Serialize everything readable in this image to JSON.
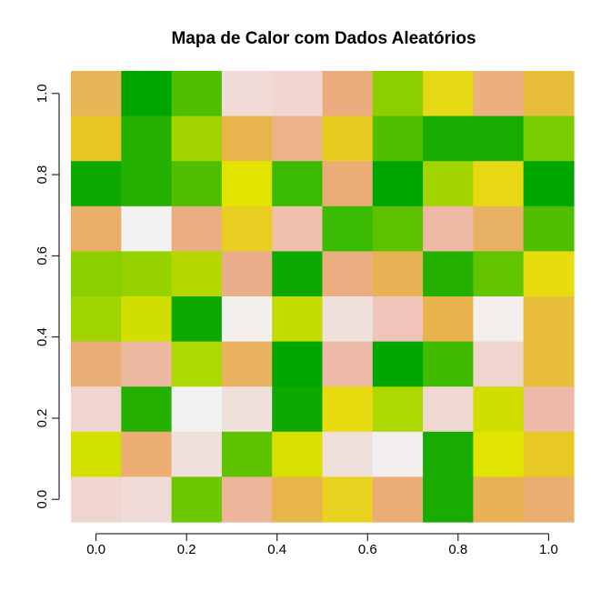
{
  "chart_data": {
    "type": "heatmap",
    "title": "Mapa de Calor com Dados Aleatórios",
    "xlabel": "",
    "ylabel": "",
    "x_ticks": [
      0.0,
      0.2,
      0.4,
      0.6,
      0.8,
      1.0
    ],
    "x_tick_labels": [
      "0.0",
      "0.2",
      "0.4",
      "0.6",
      "0.8",
      "1.0"
    ],
    "y_ticks": [
      0.0,
      0.2,
      0.4,
      0.6,
      0.8,
      1.0
    ],
    "y_tick_labels": [
      "0.0",
      "0.2",
      "0.4",
      "0.6",
      "0.8",
      "1.0"
    ],
    "xlim": [
      -0.0555,
      1.0555
    ],
    "ylim": [
      -0.0555,
      1.0555
    ],
    "n_cols": 10,
    "n_rows": 10,
    "palette": "terrain.colors",
    "colors_top_to_bottom": [
      [
        "#E8B557",
        "#00A600",
        "#4EC000",
        "#F0DBD6",
        "#F1D5D0",
        "#EBAD7E",
        "#8CCF00",
        "#E6D814",
        "#ECB080",
        "#E8BD3A"
      ],
      [
        "#E8C624",
        "#24B000",
        "#A2D500",
        "#E8B54C",
        "#ECB38A",
        "#E8CD20",
        "#4EC000",
        "#18AC00",
        "#18AC00",
        "#7ACB00"
      ],
      [
        "#0EA900",
        "#24B000",
        "#4EC000",
        "#E2E400",
        "#3ABA00",
        "#EBAD75",
        "#00A600",
        "#A2D500",
        "#E8D814",
        "#00A600"
      ],
      [
        "#EBAE68",
        "#F2F2F2",
        "#EBAE80",
        "#E8CE20",
        "#EFC0AD",
        "#3ABA00",
        "#5DC300",
        "#EDB8A4",
        "#E8B264",
        "#4EC000"
      ],
      [
        "#8CCF00",
        "#96D100",
        "#B4D800",
        "#EBAE8A",
        "#0EA900",
        "#EBAE80",
        "#E8B254",
        "#24B000",
        "#62C500",
        "#E8DC10"
      ],
      [
        "#A0D400",
        "#D0DE00",
        "#0EA900",
        "#F2EFEC",
        "#C4DC00",
        "#F0E0DC",
        "#EFC5B9",
        "#E8B24C",
        "#F2EEEC",
        "#E8BE3A"
      ],
      [
        "#EBAE76",
        "#EDB8A0",
        "#ADD800",
        "#E8B260",
        "#00A600",
        "#EDB9A8",
        "#00A600",
        "#40BC00",
        "#F0D5CF",
        "#E8BE3A"
      ],
      [
        "#F0D5CF",
        "#24B000",
        "#F2F2F2",
        "#F0E0DC",
        "#0EA900",
        "#E8DC10",
        "#ADD800",
        "#F0D8D2",
        "#D0DE00",
        "#EDB9A8"
      ],
      [
        "#D2E000",
        "#EBAD74",
        "#F0E0DC",
        "#5DC300",
        "#D8E000",
        "#F0E0DC",
        "#F2EEEE",
        "#18AC00",
        "#E0E400",
        "#E8C824"
      ],
      [
        "#F0D5CF",
        "#F0DBD7",
        "#6CC800",
        "#EDB59A",
        "#E8B54A",
        "#E8D420",
        "#EBAD78",
        "#18AC00",
        "#E8B254",
        "#EAAE72"
      ]
    ]
  }
}
